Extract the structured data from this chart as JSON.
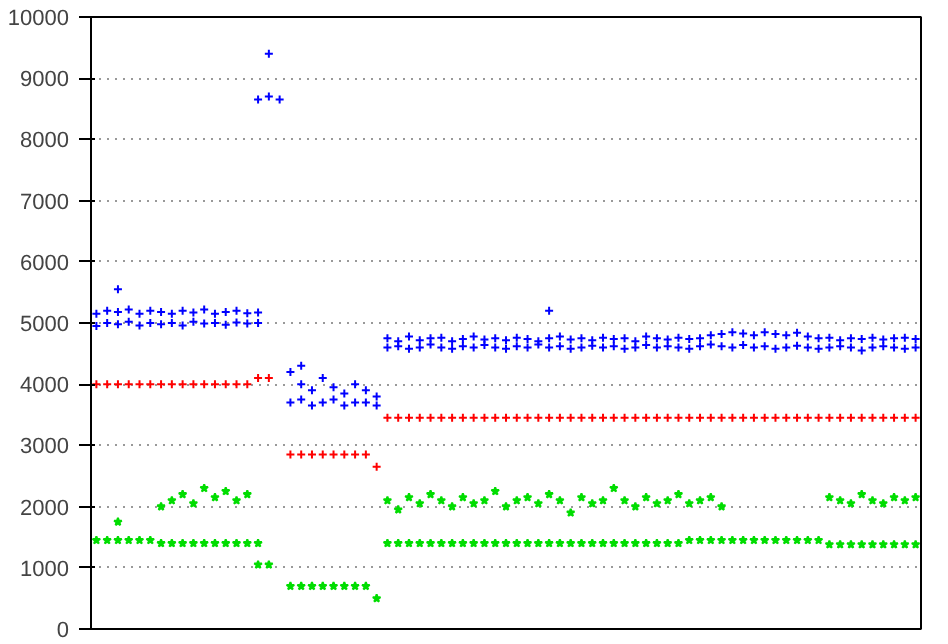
{
  "chart_data": {
    "type": "scatter",
    "ylim": [
      0,
      10000
    ],
    "yticks": [
      0,
      1000,
      2000,
      3000,
      4000,
      5000,
      6000,
      7000,
      8000,
      9000,
      10000
    ],
    "grid": "y",
    "categories": [
      null,
      null,
      null,
      null,
      null,
      null,
      null,
      null,
      null,
      null,
      null,
      null,
      null,
      null,
      null,
      null,
      null,
      null,
      null,
      null,
      null,
      null,
      null,
      null,
      null,
      null,
      null,
      null,
      null,
      null,
      null,
      null,
      null,
      null,
      null,
      null,
      null,
      null,
      null,
      null,
      null,
      null,
      null,
      null,
      null,
      null,
      null,
      null,
      null,
      null,
      null,
      null,
      null,
      null,
      null,
      null,
      null,
      null,
      null,
      null,
      null,
      null,
      null,
      null,
      null,
      null,
      null,
      null,
      null,
      null,
      null,
      null,
      null,
      null,
      null,
      null,
      null
    ],
    "series": [
      {
        "color": "#0000ff",
        "marker": "cross",
        "values": [
          5150,
          5200,
          5180,
          5220,
          5150,
          5200,
          5180,
          5150,
          5200,
          5170,
          5220,
          5150,
          5180,
          5200,
          5160,
          5170,
          9400,
          null,
          4200,
          4000,
          3900,
          4100,
          3950,
          3850,
          4000,
          3900,
          3800,
          4750,
          4700,
          4780,
          4720,
          4750,
          4760,
          4700,
          4740,
          4780,
          4730,
          4750,
          4720,
          4760,
          4740,
          4700,
          4750,
          4780,
          4730,
          4750,
          4720,
          4760,
          4740,
          4750,
          4700,
          4780,
          4750,
          4730,
          4760,
          4740,
          4750,
          4800,
          4820,
          4850,
          4830,
          4800,
          4850,
          4820,
          4800,
          4840,
          4780,
          4750,
          4760,
          4720,
          4750,
          4740,
          4760,
          4730,
          4750,
          4760,
          4740
        ]
      },
      {
        "color": "#0000ff",
        "marker": "cross",
        "values": [
          4950,
          5000,
          4980,
          5020,
          4960,
          5000,
          4980,
          5000,
          4960,
          5020,
          4990,
          5000,
          4970,
          5010,
          4990,
          5000,
          8700,
          8650,
          3700,
          3750,
          3650,
          3700,
          3750,
          3650,
          3700,
          3700,
          3650,
          4600,
          4620,
          4580,
          4600,
          4650,
          4600,
          4580,
          4620,
          4600,
          4640,
          4600,
          4580,
          4620,
          4600,
          4650,
          4600,
          4620,
          4580,
          4600,
          4630,
          4600,
          4620,
          4580,
          4600,
          4640,
          4600,
          4620,
          4600,
          4580,
          4620,
          4650,
          4620,
          4600,
          4640,
          4600,
          4620,
          4580,
          4600,
          4630,
          4600,
          4580,
          4600,
          4620,
          4600,
          4550,
          4600,
          4620,
          4600,
          4580,
          4600
        ]
      },
      {
        "color": "#0000ff",
        "marker": "cross",
        "values": [
          null,
          null,
          5550,
          null,
          null,
          null,
          null,
          null,
          null,
          null,
          null,
          null,
          null,
          null,
          null,
          8650,
          null,
          null,
          null,
          4300,
          null,
          null,
          null,
          null,
          null,
          null,
          null,
          null,
          null,
          null,
          null,
          null,
          null,
          null,
          null,
          null,
          null,
          null,
          null,
          null,
          null,
          null,
          5200,
          null,
          null,
          null,
          null,
          null,
          null,
          null,
          null,
          null,
          null,
          null,
          null,
          null,
          null,
          null,
          null,
          null,
          null,
          null,
          null,
          null,
          null,
          null,
          null,
          null,
          null,
          null,
          null,
          null,
          null,
          null,
          null,
          null,
          null
        ]
      },
      {
        "color": "#ff0000",
        "marker": "cross",
        "values": [
          4000,
          4000,
          4000,
          4000,
          4000,
          4000,
          4000,
          4000,
          4000,
          4000,
          4000,
          4000,
          4000,
          4000,
          4000,
          4100,
          4100,
          null,
          2850,
          2850,
          2850,
          2850,
          2850,
          2850,
          2850,
          2850,
          2650,
          3450,
          3450,
          3450,
          3450,
          3450,
          3450,
          3450,
          3450,
          3450,
          3450,
          3450,
          3450,
          3450,
          3450,
          3450,
          3450,
          3450,
          3450,
          3450,
          3450,
          3450,
          3450,
          3450,
          3450,
          3450,
          3450,
          3450,
          3450,
          3450,
          3450,
          3450,
          3450,
          3450,
          3450,
          3450,
          3450,
          3450,
          3450,
          3450,
          3450,
          3450,
          3450,
          3450,
          3450,
          3450,
          3450,
          3450,
          3450,
          3450,
          3450
        ]
      },
      {
        "color": "#00dd00",
        "marker": "star",
        "values": [
          null,
          null,
          1750,
          null,
          null,
          null,
          2000,
          2100,
          2200,
          2050,
          2300,
          2150,
          2250,
          2100,
          2200,
          1050,
          1050,
          null,
          700,
          700,
          700,
          700,
          700,
          700,
          700,
          700,
          500,
          2100,
          1950,
          2150,
          2050,
          2200,
          2100,
          2000,
          2150,
          2050,
          2100,
          2250,
          2000,
          2100,
          2150,
          2050,
          2200,
          2100,
          1900,
          2150,
          2050,
          2100,
          2300,
          2100,
          2000,
          2150,
          2050,
          2100,
          2200,
          2050,
          2100,
          2150,
          2000,
          null,
          null,
          null,
          null,
          null,
          null,
          null,
          null,
          null,
          2150,
          2100,
          2050,
          2200,
          2100,
          2050,
          2150,
          2100,
          2150
        ]
      },
      {
        "color": "#00dd00",
        "marker": "star",
        "values": [
          1450,
          1450,
          1450,
          1450,
          1450,
          1450,
          1400,
          1400,
          1400,
          1400,
          1400,
          1400,
          1400,
          1400,
          1400,
          1400,
          null,
          null,
          null,
          null,
          null,
          null,
          null,
          null,
          null,
          null,
          null,
          1400,
          1400,
          1400,
          1400,
          1400,
          1400,
          1400,
          1400,
          1400,
          1400,
          1400,
          1400,
          1400,
          1400,
          1400,
          1400,
          1400,
          1400,
          1400,
          1400,
          1400,
          1400,
          1400,
          1400,
          1400,
          1400,
          1400,
          1400,
          1450,
          1450,
          1450,
          1450,
          1450,
          1450,
          1450,
          1450,
          1450,
          1450,
          1450,
          1450,
          1450,
          1380,
          1380,
          1380,
          1380,
          1380,
          1380,
          1380,
          1380,
          1380
        ]
      }
    ]
  }
}
